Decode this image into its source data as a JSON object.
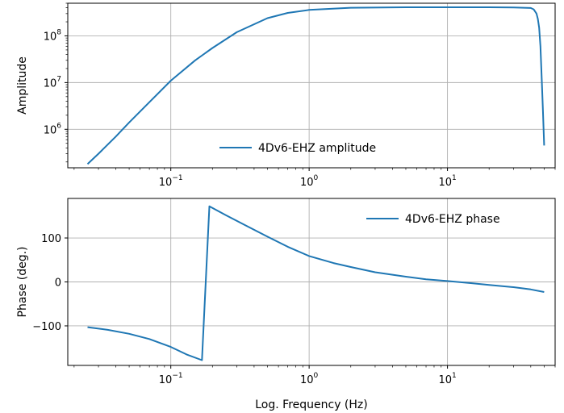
{
  "chart_data": [
    {
      "type": "line",
      "xscale": "log",
      "yscale": "log",
      "xlim": [
        0.018,
        60
      ],
      "ylim": [
        150000,
        500000000
      ],
      "ylabel": "Amplitude",
      "xlabel": "",
      "grid": true,
      "legend_position": "lower-center",
      "x_ticks": [
        {
          "value": 0.1,
          "base": "10",
          "exp": "−1"
        },
        {
          "value": 1,
          "base": "10",
          "exp": "0"
        },
        {
          "value": 10,
          "base": "10",
          "exp": "1"
        }
      ],
      "y_ticks": [
        {
          "value": 1000000,
          "base": "10",
          "exp": "6"
        },
        {
          "value": 10000000,
          "base": "10",
          "exp": "7"
        },
        {
          "value": 100000000,
          "base": "10",
          "exp": "8"
        }
      ],
      "series": [
        {
          "name": "4Dv6-EHZ amplitude",
          "color": "#1f77b4",
          "x": [
            0.025,
            0.03,
            0.04,
            0.05,
            0.07,
            0.1,
            0.15,
            0.2,
            0.3,
            0.5,
            0.7,
            1,
            2,
            5,
            10,
            20,
            30,
            40,
            42,
            44,
            45,
            46,
            47,
            48,
            49,
            50
          ],
          "y": [
            180000,
            300000,
            700000,
            1400000,
            3800000,
            11000000,
            30000000,
            55000000,
            120000000,
            240000000,
            310000000,
            360000000,
            400000000,
            410000000,
            410000000,
            410000000,
            405000000,
            395000000,
            370000000,
            300000000,
            230000000,
            150000000,
            60000000,
            12000000,
            2500000,
            450000
          ]
        }
      ]
    },
    {
      "type": "line",
      "xscale": "log",
      "yscale": "linear",
      "xlim": [
        0.018,
        60
      ],
      "ylim": [
        -190,
        190
      ],
      "ylabel": "Phase (deg.)",
      "xlabel": "Log. Frequency (Hz)",
      "grid": true,
      "legend_position": "upper-right",
      "x_ticks": [
        {
          "value": 0.1,
          "base": "10",
          "exp": "−1"
        },
        {
          "value": 1,
          "base": "10",
          "exp": "0"
        },
        {
          "value": 10,
          "base": "10",
          "exp": "1"
        }
      ],
      "y_ticks": [
        {
          "value": -100,
          "label": "−100"
        },
        {
          "value": 0,
          "label": "0"
        },
        {
          "value": 100,
          "label": "100"
        }
      ],
      "series": [
        {
          "name": "4Dv6-EHZ phase",
          "color": "#1f77b4",
          "x": [
            0.025,
            0.035,
            0.05,
            0.07,
            0.1,
            0.13,
            0.168,
            0.19,
            0.25,
            0.35,
            0.5,
            0.7,
            1,
            1.5,
            2,
            3,
            5,
            7,
            10,
            15,
            20,
            30,
            40,
            50
          ],
          "y": [
            -103,
            -109,
            -118,
            -130,
            -148,
            -165,
            -178,
            172,
            152,
            128,
            103,
            80,
            59,
            43,
            34,
            22,
            12,
            6,
            2,
            -3,
            -7,
            -12,
            -17,
            -23
          ]
        }
      ]
    }
  ]
}
